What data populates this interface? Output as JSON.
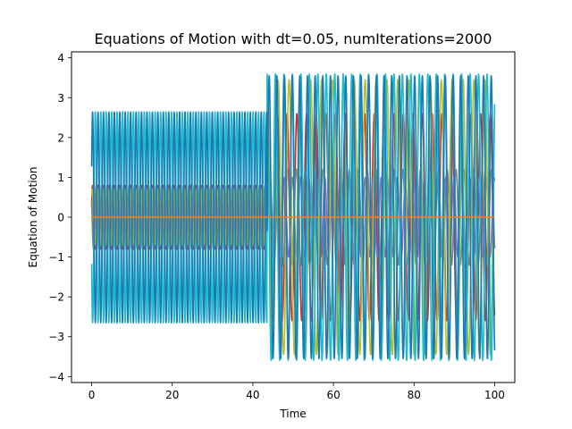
{
  "chart_data": {
    "type": "line",
    "title": "Equations of Motion with dt=0.05, numIterations=2000",
    "xlabel": "Time",
    "ylabel": "Equation of Motion",
    "xlim": [
      -5,
      105
    ],
    "ylim": [
      -4.15,
      4.15
    ],
    "xticks": [
      0,
      20,
      40,
      60,
      80,
      100
    ],
    "yticks": [
      -4,
      -3,
      -2,
      -1,
      0,
      1,
      2,
      3,
      4
    ],
    "xtick_labels": [
      "0",
      "20",
      "40",
      "60",
      "80",
      "100"
    ],
    "ytick_labels": [
      "−4",
      "−3",
      "−2",
      "−1",
      "0",
      "1",
      "2",
      "3",
      "4"
    ],
    "grid": false,
    "legend": "none",
    "regime_change_x": 43.5,
    "series": [
      {
        "color": "#d62728",
        "phase1": {
          "amplitude": 0.8,
          "period": 1.35,
          "phase": 0.3
        },
        "phase2": {
          "amplitude": 2.6,
          "period": 2.4,
          "phase": 0.2
        }
      },
      {
        "color": "#9467bd",
        "phase1": {
          "amplitude": 0.75,
          "period": 1.35,
          "phase": 1.5
        },
        "phase2": {
          "amplitude": 1.0,
          "period": 2.0,
          "phase": 2.0
        }
      },
      {
        "color": "#7f7f7f",
        "phase1": {
          "amplitude": 0.8,
          "period": 1.35,
          "phase": 2.6
        },
        "phase2": {
          "amplitude": 1.2,
          "period": 2.2,
          "phase": 1.0
        }
      },
      {
        "color": "#bcbd22",
        "phase1": {
          "amplitude": 0.7,
          "period": 1.35,
          "phase": 0.9
        },
        "phase2": {
          "amplitude": 3.45,
          "period": 2.7,
          "phase": 0.7
        }
      },
      {
        "color": "#17becf",
        "phase1": {
          "amplitude": 2.65,
          "period": 1.35,
          "phase": 3.6
        },
        "phase2": {
          "amplitude": 3.6,
          "period": 2.1,
          "phase": 3.3
        }
      },
      {
        "color": "#1f77b4",
        "phase1": {
          "amplitude": 2.65,
          "period": 1.35,
          "phase": 0.5
        },
        "phase2": {
          "amplitude": 3.55,
          "period": 1.9,
          "phase": 0.4
        }
      },
      {
        "color": "#ff7f0e",
        "phase1": {
          "amplitude": 0.0,
          "period": 1.35,
          "phase": 0.0
        },
        "phase2": {
          "amplitude": 0.0,
          "period": 2.0,
          "phase": 0.0
        }
      }
    ]
  }
}
